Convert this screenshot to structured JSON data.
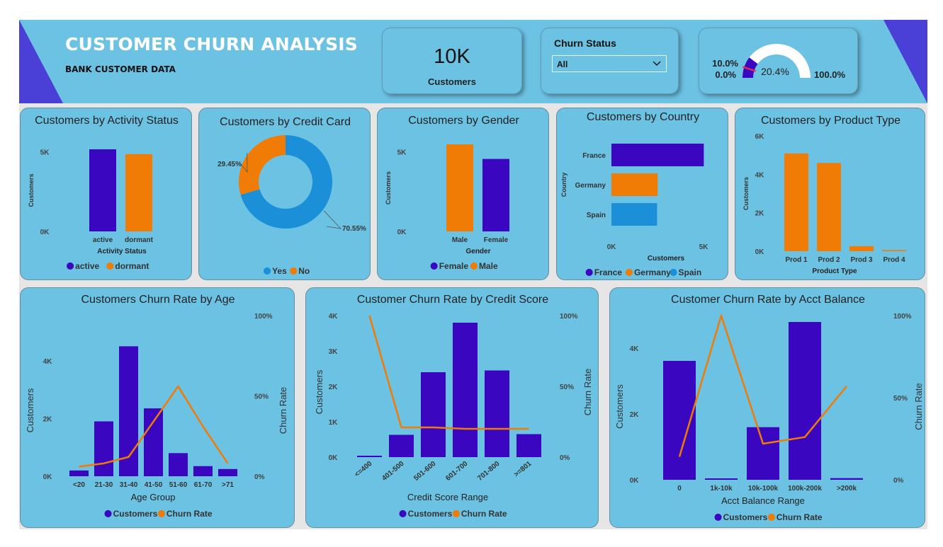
{
  "header": {
    "title": "CUSTOMER CHURN ANALYSIS",
    "subtitle": "BANK CUSTOMER DATA",
    "kpi": {
      "value": "10K",
      "label": "Customers"
    },
    "slicer": {
      "label": "Churn Status",
      "value": "All"
    },
    "gauge": {
      "value": 20.4,
      "value_label": "20.4%",
      "min_label": "0.0%",
      "max_label": "100.0%",
      "target_label": "10.0%",
      "min": 0,
      "max": 100,
      "target": 10
    }
  },
  "colors": {
    "purple": "#3a06bf",
    "orange": "#f07b05",
    "blue": "#1b8fd8",
    "card": "#6cc2e3",
    "banner": "#6cc2e3",
    "accent": "#4a3fd6"
  },
  "icons": {
    "slicer": "chevron-down-icon"
  },
  "chart_data": [
    {
      "id": "activity",
      "type": "bar",
      "title": "Customers by Activity Status",
      "xlabel": "Activity Status",
      "ylabel": "Customers",
      "categories": [
        "active",
        "dormant"
      ],
      "values": [
        5151,
        4849
      ],
      "ylim": [
        0,
        5151
      ],
      "yticks": [
        {
          "v": 0,
          "label": "0K"
        },
        {
          "v": 5000,
          "label": "5K"
        }
      ],
      "legend": [
        {
          "name": "active",
          "color": "#3a06bf"
        },
        {
          "name": "dormant",
          "color": "#f07b05"
        }
      ],
      "bar_colors": [
        "#3a06bf",
        "#f07b05"
      ]
    },
    {
      "id": "creditcard",
      "type": "pie",
      "title": "Customers by Credit Card",
      "slices": [
        {
          "name": "Yes",
          "value": 70.55,
          "label": "70.55%",
          "color": "#1b8fd8"
        },
        {
          "name": "No",
          "value": 29.45,
          "label": "29.45%",
          "color": "#f07b05"
        }
      ],
      "legend": [
        {
          "name": "Yes",
          "color": "#1b8fd8"
        },
        {
          "name": "No",
          "color": "#f07b05"
        }
      ]
    },
    {
      "id": "gender",
      "type": "bar",
      "title": "Customers by Gender",
      "xlabel": "Gender",
      "ylabel": "Customers",
      "categories": [
        "Male",
        "Female"
      ],
      "values": [
        5457,
        4543
      ],
      "ylim": [
        0,
        5457
      ],
      "yticks": [
        {
          "v": 0,
          "label": "0K"
        },
        {
          "v": 5000,
          "label": "5K"
        }
      ],
      "legend": [
        {
          "name": "Female",
          "color": "#3a06bf"
        },
        {
          "name": "Male",
          "color": "#f07b05"
        }
      ],
      "bar_colors": [
        "#f07b05",
        "#3a06bf"
      ]
    },
    {
      "id": "country",
      "type": "bar",
      "title": "Customers by Country",
      "xlabel": "Customers",
      "ylabel": "Country",
      "categories": [
        "France",
        "Germany",
        "Spain"
      ],
      "values": [
        5014,
        2509,
        2477
      ],
      "xlim": [
        0,
        5000
      ],
      "xticks": [
        {
          "v": 0,
          "label": "0K"
        },
        {
          "v": 5000,
          "label": "5K"
        }
      ],
      "legend": [
        {
          "name": "France",
          "color": "#3a06bf"
        },
        {
          "name": "Germany",
          "color": "#f07b05"
        },
        {
          "name": "Spain",
          "color": "#1b8fd8"
        }
      ],
      "bar_colors": [
        "#3a06bf",
        "#f07b05",
        "#1b8fd8"
      ]
    },
    {
      "id": "product",
      "type": "bar",
      "title": "Customers by Product Type",
      "xlabel": "Product Type",
      "ylabel": "Customers",
      "categories": [
        "Prod 1",
        "Prod 2",
        "Prod 3",
        "Prod 4"
      ],
      "values": [
        5084,
        4590,
        266,
        60
      ],
      "ylim": [
        0,
        6000
      ],
      "yticks": [
        {
          "v": 0,
          "label": "0K"
        },
        {
          "v": 2000,
          "label": "2K"
        },
        {
          "v": 4000,
          "label": "4K"
        },
        {
          "v": 6000,
          "label": "6K"
        }
      ],
      "bar_colors": [
        "#f07b05",
        "#f07b05",
        "#f07b05",
        "#f07b05"
      ]
    },
    {
      "id": "age",
      "type": "bar",
      "title": "Customers Churn Rate by Age",
      "xlabel": "Age Group",
      "ylabel": "Customers",
      "y2label": "Churn Rate",
      "categories": [
        "<20",
        "21-30",
        "31-40",
        "41-50",
        "51-60",
        "61-70",
        ">71"
      ],
      "series": [
        {
          "name": "Customers",
          "values": [
            200,
            1900,
            4500,
            2350,
            800,
            350,
            250
          ],
          "color": "#3a06bf"
        },
        {
          "name": "Churn Rate",
          "values": [
            6,
            8,
            12,
            34,
            56,
            31,
            8
          ],
          "color": "#f07b05",
          "axis": "right"
        }
      ],
      "ylim": [
        0,
        4950
      ],
      "y2lim": [
        0,
        100
      ],
      "yticks": [
        {
          "v": 0,
          "label": "0K"
        },
        {
          "v": 2000,
          "label": "2K"
        },
        {
          "v": 4000,
          "label": "4K"
        }
      ],
      "y2ticks": [
        {
          "v": 0,
          "label": "0%"
        },
        {
          "v": 50,
          "label": "50%"
        },
        {
          "v": 100,
          "label": "100%"
        }
      ],
      "legend": [
        {
          "name": "Customers",
          "color": "#3a06bf"
        },
        {
          "name": "Churn Rate",
          "color": "#f07b05"
        }
      ]
    },
    {
      "id": "credit",
      "type": "bar",
      "title": "Customer Churn Rate by Credit Score",
      "xlabel": "Credit Score Range",
      "ylabel": "Customers",
      "y2label": "Churn Rate",
      "categories": [
        "<=400",
        "401-500",
        "501-600",
        "601-700",
        "701-800",
        ">=801"
      ],
      "series": [
        {
          "name": "Customers",
          "values": [
            19,
            630,
            2400,
            3800,
            2450,
            650
          ],
          "color": "#3a06bf"
        },
        {
          "name": "Churn Rate",
          "values": [
            100,
            21,
            21,
            20,
            20,
            20
          ],
          "color": "#f07b05",
          "axis": "right"
        }
      ],
      "ylim": [
        0,
        4000
      ],
      "y2lim": [
        0,
        100
      ],
      "yticks": [
        {
          "v": 0,
          "label": "0K"
        },
        {
          "v": 1000,
          "label": "1K"
        },
        {
          "v": 2000,
          "label": "2K"
        },
        {
          "v": 3000,
          "label": "3K"
        },
        {
          "v": 4000,
          "label": "4K"
        }
      ],
      "y2ticks": [
        {
          "v": 0,
          "label": "0%"
        },
        {
          "v": 50,
          "label": "50%"
        },
        {
          "v": 100,
          "label": "100%"
        }
      ],
      "legend": [
        {
          "name": "Customers",
          "color": "#3a06bf"
        },
        {
          "name": "Churn Rate",
          "color": "#f07b05"
        }
      ]
    },
    {
      "id": "balance",
      "type": "bar",
      "title": "Customer Churn Rate by Acct Balance",
      "xlabel": "Acct Balance Range",
      "ylabel": "Customers",
      "y2label": "Churn Rate",
      "categories": [
        "0",
        "1k-10k",
        "10k-100k",
        "100k-200k",
        ">200k"
      ],
      "series": [
        {
          "name": "Customers",
          "values": [
            3617,
            20,
            1600,
            4800,
            50
          ],
          "color": "#3a06bf"
        },
        {
          "name": "Churn Rate",
          "values": [
            14,
            100,
            22,
            26,
            57
          ],
          "color": "#f07b05",
          "axis": "right"
        }
      ],
      "ylim": [
        0,
        4800
      ],
      "y2lim": [
        0,
        100
      ],
      "yticks": [
        {
          "v": 0,
          "label": "0K"
        },
        {
          "v": 2000,
          "label": "2K"
        },
        {
          "v": 4000,
          "label": "4K"
        }
      ],
      "y2ticks": [
        {
          "v": 0,
          "label": "0%"
        },
        {
          "v": 50,
          "label": "50%"
        },
        {
          "v": 100,
          "label": "100%"
        }
      ],
      "legend": [
        {
          "name": "Customers",
          "color": "#3a06bf"
        },
        {
          "name": "Churn Rate",
          "color": "#f07b05"
        }
      ]
    }
  ]
}
